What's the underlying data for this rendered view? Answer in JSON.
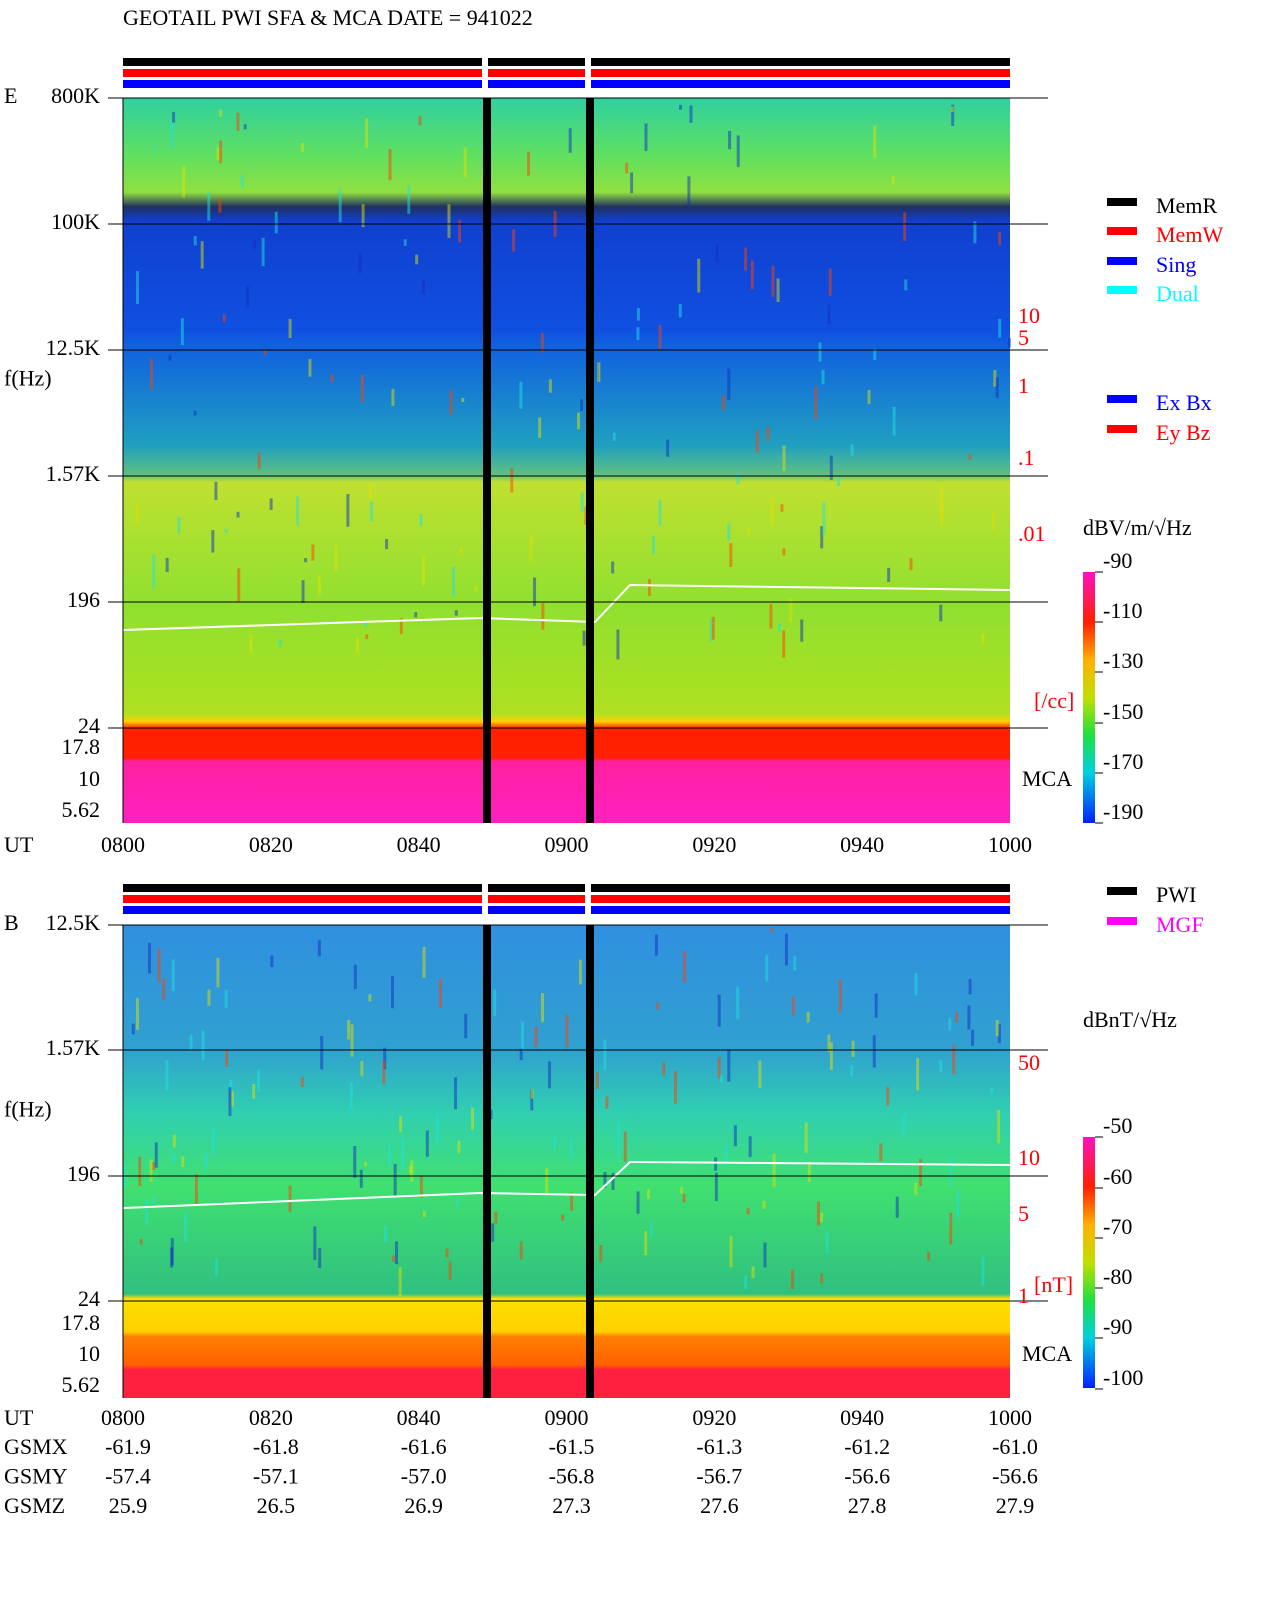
{
  "title": "GEOTAIL   PWI SFA & MCA   DATE = 941022",
  "panels": [
    {
      "label": "E",
      "y_axis_label": "f(Hz)",
      "freq_labels": [
        "800K",
        "100K",
        "12.5K",
        "1.57K",
        "196",
        "24",
        "17.8",
        "10",
        "5.62"
      ],
      "time_axis_label": "UT",
      "times": [
        "0800",
        "0820",
        "0840",
        "0900",
        "0920",
        "0940",
        "1000"
      ],
      "right_labels": [
        "10",
        "5",
        "1",
        ".1",
        ".01",
        "[/cc]"
      ],
      "mca": "MCA",
      "unit": "dBV/m/√Hz",
      "colorbar_ticks": [
        "-90",
        "-110",
        "-130",
        "-150",
        "-170",
        "-190"
      ],
      "legend": [
        {
          "name": "MemR",
          "color": "#000000"
        },
        {
          "name": "MemW",
          "color": "#ff0000"
        },
        {
          "name": "Sing",
          "color": "#0000ff"
        },
        {
          "name": "Dual",
          "color": "#00ffff"
        },
        {
          "name": "Ex Bx",
          "color": "#0000ff"
        },
        {
          "name": "Ey Bz",
          "color": "#ff0000"
        }
      ]
    },
    {
      "label": "B",
      "y_axis_label": "f(Hz)",
      "freq_labels": [
        "12.5K",
        "1.57K",
        "196",
        "24",
        "17.8",
        "10",
        "5.62"
      ],
      "time_axis_label": "UT",
      "times": [
        "0800",
        "0820",
        "0840",
        "0900",
        "0920",
        "0940",
        "1000"
      ],
      "right_labels": [
        "50",
        "10",
        "5",
        "1",
        "[nT]"
      ],
      "mca": "MCA",
      "unit": "dBnT/√Hz",
      "colorbar_ticks": [
        "-50",
        "-60",
        "-70",
        "-80",
        "-90",
        "-100"
      ],
      "legend": [
        {
          "name": "PWI",
          "color": "#000000"
        },
        {
          "name": "MGF",
          "color": "#ff00ff"
        }
      ]
    }
  ],
  "orbit": [
    {
      "name": "GSMX",
      "values": [
        "-61.9",
        "-61.8",
        "-61.6",
        "-61.5",
        "-61.3",
        "-61.2",
        "-61.0"
      ]
    },
    {
      "name": "GSMY",
      "values": [
        "-57.4",
        "-57.1",
        "-57.0",
        "-56.8",
        "-56.7",
        "-56.6",
        "-56.6"
      ]
    },
    {
      "name": "GSMZ",
      "values": [
        "25.9",
        "26.5",
        "26.9",
        "27.3",
        "27.6",
        "27.8",
        "27.9"
      ]
    }
  ]
}
